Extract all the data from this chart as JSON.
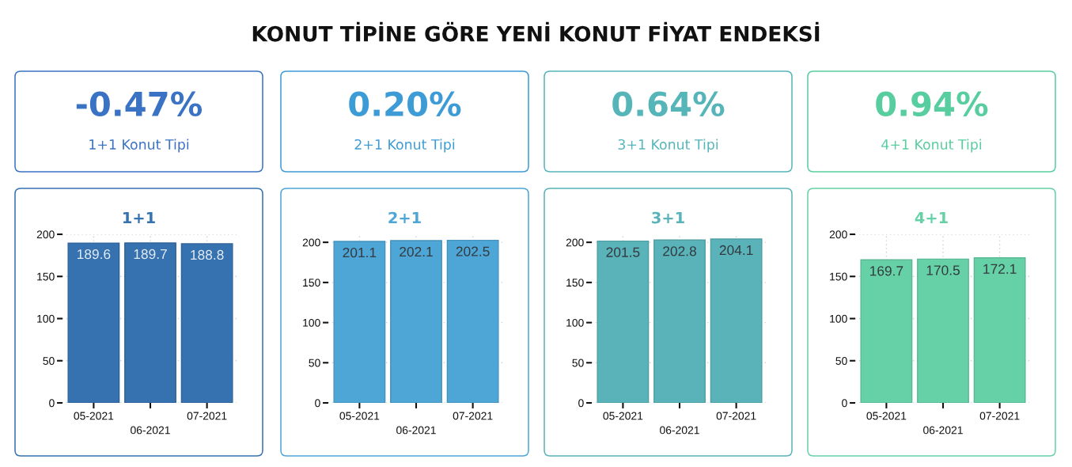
{
  "chart_data": [
    {
      "type": "other",
      "title": "KONUT TİPİNE GÖRE YENİ KONUT FİYAT ENDEKSİ"
    },
    {
      "type": "other",
      "title": "-0.47%",
      "subtitle": "1+1 Konut Tipi",
      "colors": [
        "#3a72c4"
      ]
    },
    {
      "type": "other",
      "title": "0.20%",
      "subtitle": "2+1 Konut Tipi",
      "colors": [
        "#3d9bd6"
      ]
    },
    {
      "type": "other",
      "title": "0.64%",
      "subtitle": "3+1 Konut Tipi",
      "colors": [
        "#55b5b9"
      ]
    },
    {
      "type": "other",
      "title": "0.94%",
      "subtitle": "4+1 Konut Tipi",
      "colors": [
        "#58cd9f"
      ]
    },
    {
      "type": "bar",
      "title": "1+1",
      "categories": [
        "05-2021",
        "06-2021",
        "07-2021"
      ],
      "series": [
        {
          "color": "#3671b0",
          "values": [
            189.6,
            189.7,
            188.8
          ]
        }
      ],
      "ylim": [
        0,
        200
      ],
      "yticks": [
        0,
        50,
        100,
        150,
        200
      ],
      "grid": true,
      "data_labels": true
    },
    {
      "type": "bar",
      "title": "2+1",
      "categories": [
        "05-2021",
        "06-2021",
        "07-2021"
      ],
      "series": [
        {
          "color": "#4ea6d6",
          "values": [
            201.1,
            202.1,
            202.5
          ]
        }
      ],
      "ylim": [
        0,
        210
      ],
      "yticks": [
        0,
        50,
        100,
        150,
        200
      ],
      "grid": true,
      "data_labels": true
    },
    {
      "type": "bar",
      "title": "3+1",
      "categories": [
        "05-2021",
        "06-2021",
        "07-2021"
      ],
      "series": [
        {
          "color": "#59b3b8",
          "values": [
            201.5,
            202.8,
            204.1
          ]
        }
      ],
      "ylim": [
        0,
        210
      ],
      "yticks": [
        0,
        50,
        100,
        150,
        200
      ],
      "grid": true,
      "data_labels": true
    },
    {
      "type": "bar",
      "title": "4+1",
      "categories": [
        "05-2021",
        "06-2021",
        "07-2021"
      ],
      "series": [
        {
          "color": "#66d1a6",
          "values": [
            169.7,
            170.5,
            172.1
          ]
        }
      ],
      "ylim": [
        0,
        200
      ],
      "yticks": [
        0,
        50,
        100,
        150,
        200
      ],
      "grid": true,
      "data_labels": true
    }
  ]
}
